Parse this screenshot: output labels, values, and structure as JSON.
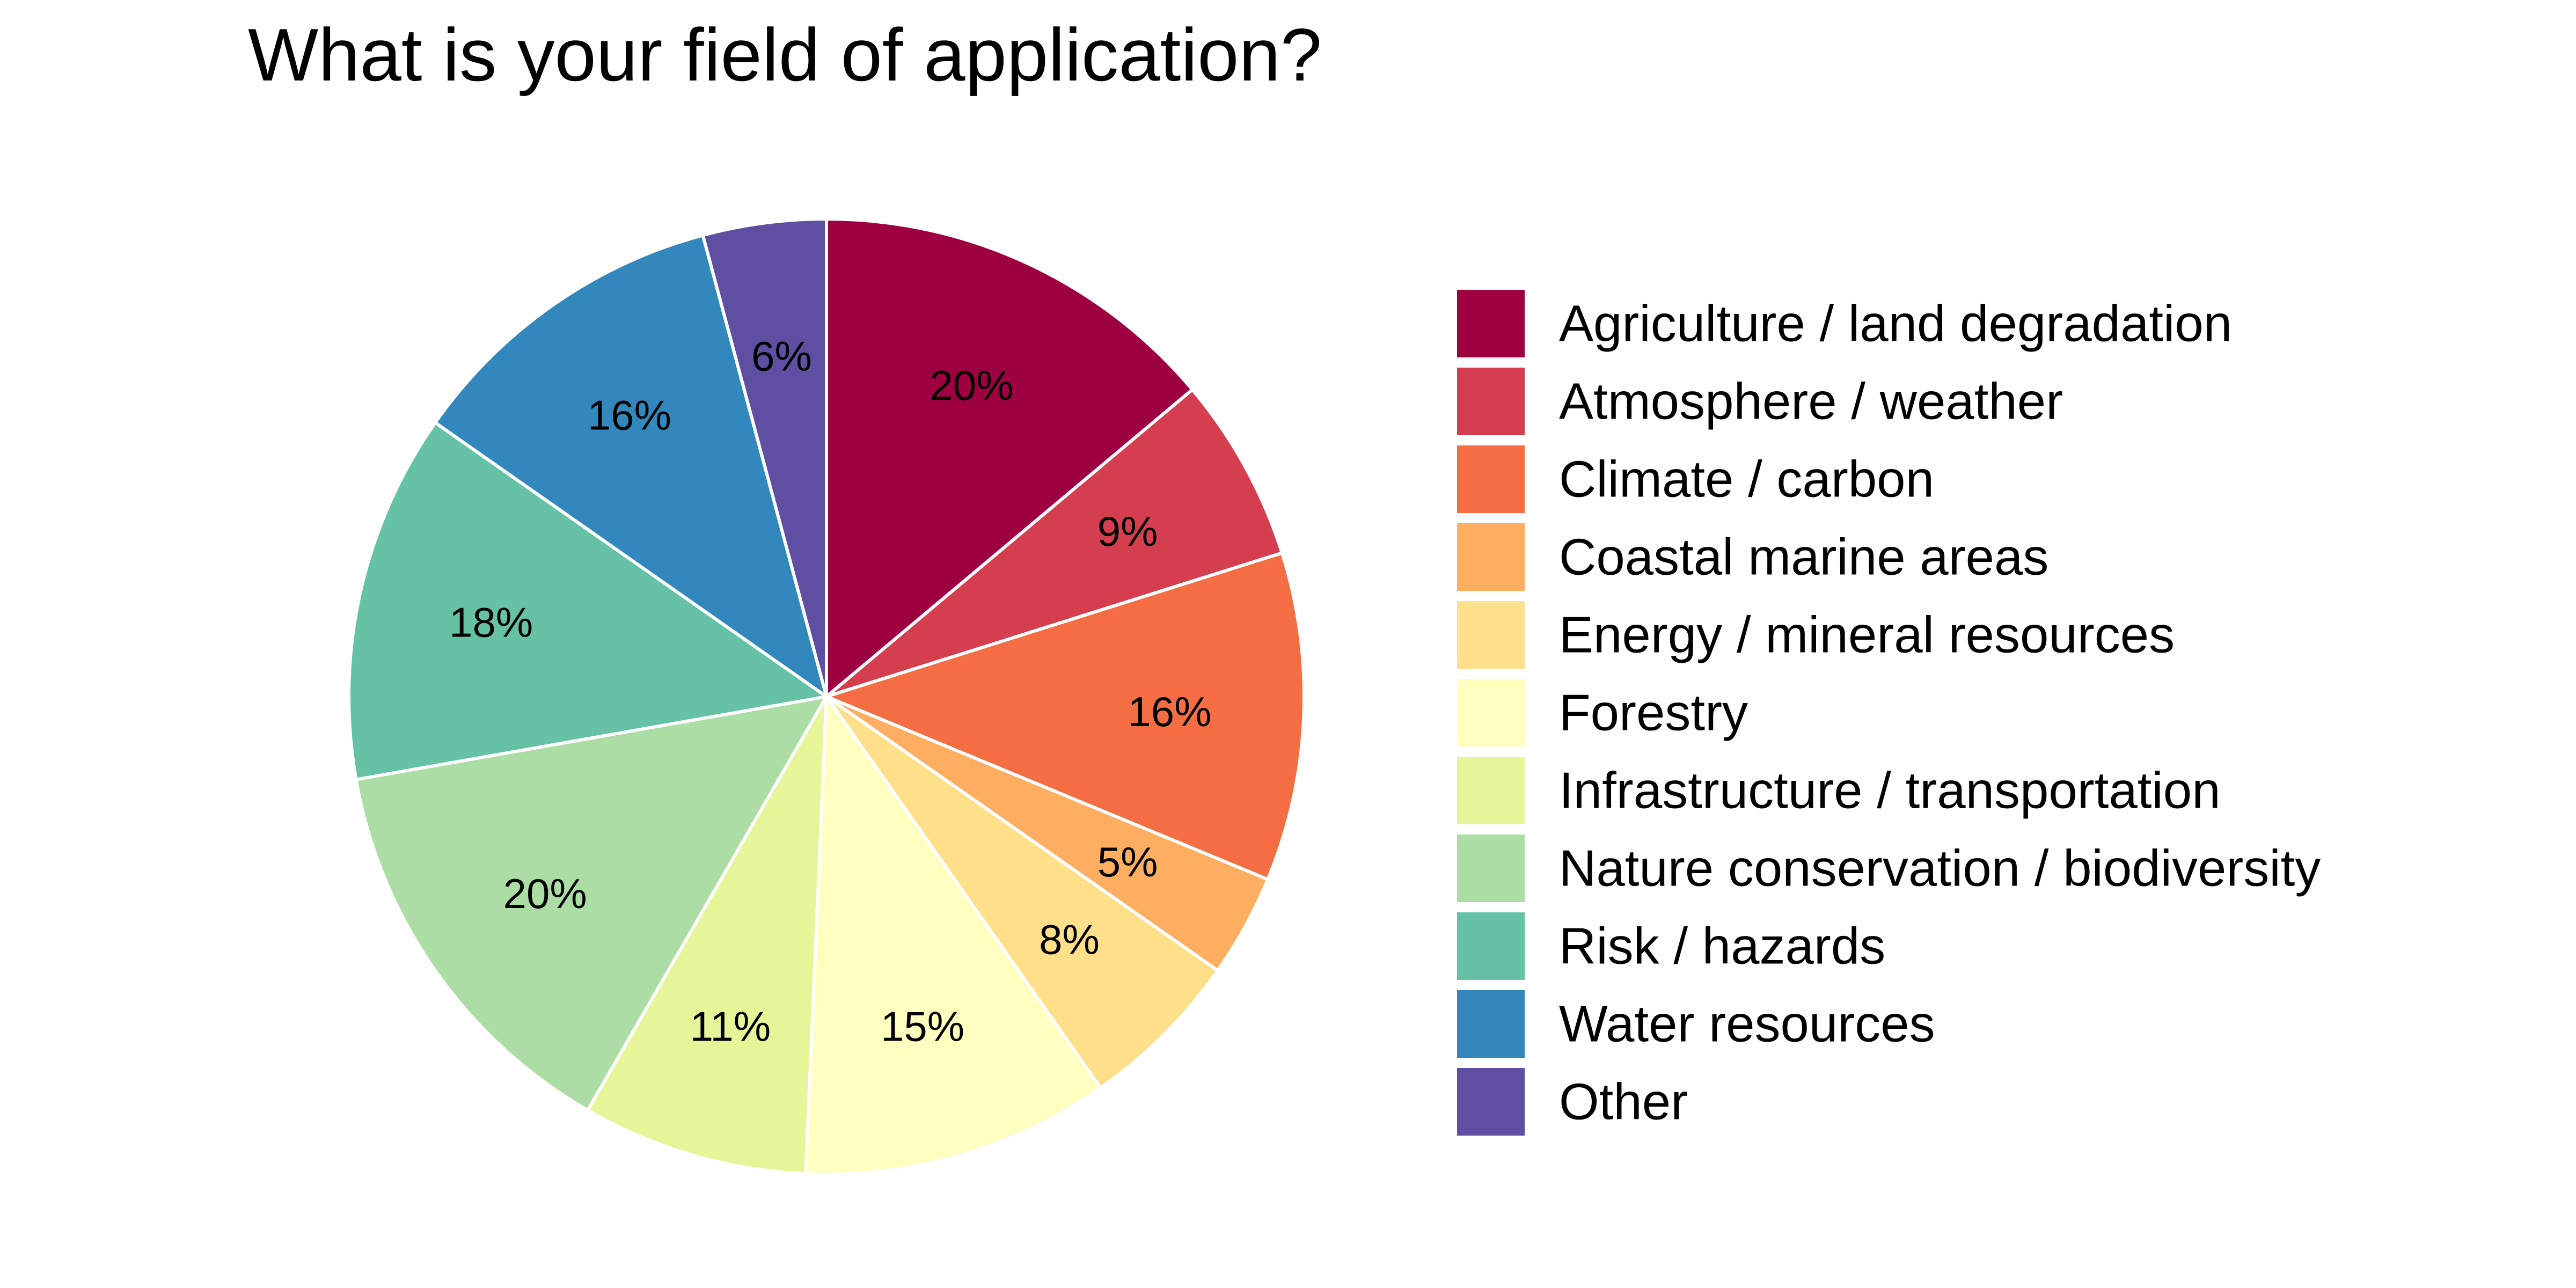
{
  "chart_data": {
    "type": "pie",
    "title": "What is your field of application?",
    "start": "12 o'clock",
    "direction": "clockwise",
    "legend_position": "right",
    "slices": [
      {
        "label": "Agriculture / land degradation",
        "value": 20,
        "display": "20%",
        "color": "#9E0142"
      },
      {
        "label": "Atmosphere / weather",
        "value": 9,
        "display": "9%",
        "color": "#D53E4F"
      },
      {
        "label": "Climate / carbon",
        "value": 16,
        "display": "16%",
        "color": "#F46D43"
      },
      {
        "label": "Coastal marine areas",
        "value": 5,
        "display": "5%",
        "color": "#FDAE61"
      },
      {
        "label": "Energy / mineral resources",
        "value": 8,
        "display": "8%",
        "color": "#FEE08B"
      },
      {
        "label": "Forestry",
        "value": 15,
        "display": "15%",
        "color": "#FFFFBF"
      },
      {
        "label": "Infrastructure / transportation",
        "value": 11,
        "display": "11%",
        "color": "#E6F598"
      },
      {
        "label": "Nature conservation / biodiversity",
        "value": 20,
        "display": "20%",
        "color": "#ABDDA4"
      },
      {
        "label": "Risk / hazards",
        "value": 18,
        "display": "18%",
        "color": "#66C2A5"
      },
      {
        "label": "Water resources",
        "value": 16,
        "display": "16%",
        "color": "#3288BD"
      },
      {
        "label": "Other",
        "value": 6,
        "display": "6%",
        "color": "#5E4FA2"
      }
    ]
  }
}
